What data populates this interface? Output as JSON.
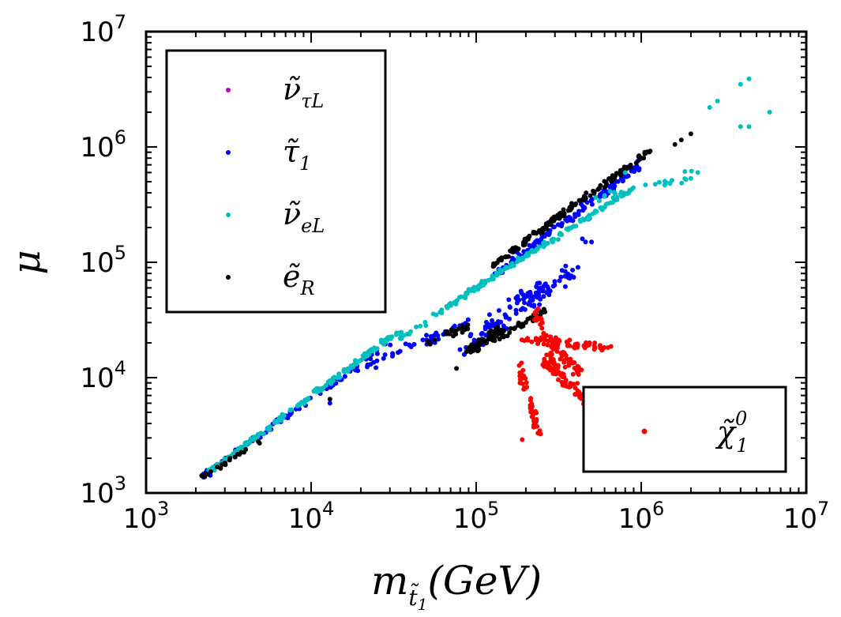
{
  "chart_data": {
    "type": "scatter",
    "title": "",
    "xlabel": {
      "base": "m",
      "sub": "t̃",
      "subsub": "1",
      "unit": "(GeV)"
    },
    "ylabel": "μ",
    "xscale": "log",
    "yscale": "log",
    "xlim": [
      1000,
      10000000
    ],
    "ylim": [
      1000,
      10000000
    ],
    "xticks": [
      {
        "base": "10",
        "exp": "3"
      },
      {
        "base": "10",
        "exp": "4"
      },
      {
        "base": "10",
        "exp": "5"
      },
      {
        "base": "10",
        "exp": "6"
      },
      {
        "base": "10",
        "exp": "7"
      }
    ],
    "yticks": [
      {
        "base": "10",
        "exp": "3"
      },
      {
        "base": "10",
        "exp": "4"
      },
      {
        "base": "10",
        "exp": "5"
      },
      {
        "base": "10",
        "exp": "6"
      },
      {
        "base": "10",
        "exp": "7"
      }
    ],
    "legend_main": {
      "placement": "upper-left",
      "entries": [
        {
          "name": "nu-tau-L",
          "symbol": "ν̃",
          "sub": "τL",
          "color": "#bf00bf"
        },
        {
          "name": "stau-1",
          "symbol": "τ̃",
          "sub": "1",
          "color": "#0000ff"
        },
        {
          "name": "nu-e-L",
          "symbol": "ν̃",
          "sub": "eL",
          "color": "#00bfbf"
        },
        {
          "name": "selectron-R",
          "symbol": "ẽ",
          "sub": "R",
          "color": "#000000"
        }
      ]
    },
    "legend_secondary": {
      "placement": "lower-right",
      "entries": [
        {
          "name": "neutralino-1",
          "symbol": "χ̃",
          "sup": "0",
          "sub": "1",
          "color": "#ff0000"
        }
      ]
    },
    "series": [
      {
        "name": "stau-1",
        "color": "#0000ff",
        "segments": [
          {
            "x": [
              2200,
              30000
            ],
            "y": [
              1400,
              20000
            ],
            "n": 90,
            "sx": 0.03,
            "sy": 0.03
          },
          {
            "x": [
              20000,
              90000
            ],
            "y": [
              12000,
              30000
            ],
            "n": 50,
            "sx": 0.06,
            "sy": 0.05
          },
          {
            "x": [
              90000,
              260000
            ],
            "y": [
              18000,
              65000
            ],
            "n": 90,
            "sx": 0.08,
            "sy": 0.12
          },
          {
            "x": [
              130000,
              1000000
            ],
            "y": [
              80000,
              700000
            ],
            "n": 130,
            "sx": 0.04,
            "sy": 0.04
          },
          {
            "x": [
              200000,
              380000
            ],
            "y": [
              40000,
              85000
            ],
            "n": 35,
            "sx": 0.08,
            "sy": 0.08
          }
        ]
      },
      {
        "name": "nu-e-L",
        "color": "#00bfbf",
        "segments": [
          {
            "x": [
              2200,
              35000
            ],
            "y": [
              1400,
              26000
            ],
            "n": 170,
            "sx": 0.025,
            "sy": 0.025
          },
          {
            "x": [
              35000,
              100000
            ],
            "y": [
              22000,
              60000
            ],
            "n": 40,
            "sx": 0.03,
            "sy": 0.03
          },
          {
            "x": [
              90000,
              900000
            ],
            "y": [
              55000,
              440000
            ],
            "n": 130,
            "sx": 0.025,
            "sy": 0.025
          },
          {
            "x": [
              500000,
              2200000
            ],
            "y": [
              350000,
              600000
            ],
            "n": 25,
            "sx": 0.05,
            "sy": 0.08
          }
        ]
      },
      {
        "name": "selectron-R",
        "color": "#000000",
        "segments": [
          {
            "x": [
              2200,
              5000
            ],
            "y": [
              1400,
              2800
            ],
            "n": 25,
            "sx": 0.02,
            "sy": 0.02
          },
          {
            "x": [
              50000,
              90000
            ],
            "y": [
              20000,
              28000
            ],
            "n": 25,
            "sx": 0.04,
            "sy": 0.04
          },
          {
            "x": [
              90000,
              140000
            ],
            "y": [
              17000,
              26000
            ],
            "n": 70,
            "sx": 0.05,
            "sy": 0.05
          },
          {
            "x": [
              140000,
              260000
            ],
            "y": [
              22000,
              38000
            ],
            "n": 30,
            "sx": 0.04,
            "sy": 0.04
          },
          {
            "x": [
              120000,
              1150000
            ],
            "y": [
              90000,
              950000
            ],
            "n": 160,
            "sx": 0.03,
            "sy": 0.03
          }
        ],
        "points": [
          [
            13000,
            6500
          ],
          [
            1600000,
            1050000
          ],
          [
            1750000,
            1150000
          ],
          [
            2000000,
            1300000
          ],
          [
            76000,
            12000
          ]
        ]
      },
      {
        "name": "neutralino-1",
        "color": "#ff0000",
        "segments": [
          {
            "x": [
              200000,
              580000
            ],
            "y": [
              22000,
              18000
            ],
            "n": 60,
            "sx": 0.12,
            "sy": 0.05
          },
          {
            "x": [
              250000,
              420000
            ],
            "y": [
              25000,
              11000
            ],
            "n": 50,
            "sx": 0.05,
            "sy": 0.08
          },
          {
            "x": [
              260000,
              480000
            ],
            "y": [
              14000,
              6000
            ],
            "n": 70,
            "sx": 0.05,
            "sy": 0.07
          },
          {
            "x": [
              180000,
              240000
            ],
            "y": [
              12000,
              3400
            ],
            "n": 50,
            "sx": 0.03,
            "sy": 0.12
          },
          {
            "x": [
              230000,
              300000
            ],
            "y": [
              38000,
              12000
            ],
            "n": 30,
            "sx": 0.03,
            "sy": 0.06
          }
        ],
        "points": [
          [
            190000,
            2900
          ]
        ]
      }
    ],
    "extra_points": [
      {
        "series": "nu-e-L",
        "color": "#00bfbf",
        "points": [
          [
            2600000,
            2200000
          ],
          [
            2900000,
            2500000
          ],
          [
            4000000,
            3500000
          ],
          [
            4500000,
            3900000
          ],
          [
            6000000,
            2000000
          ],
          [
            4000000,
            1500000
          ],
          [
            4500000,
            1500000
          ],
          [
            2200000,
            600000
          ],
          [
            800000,
            600000
          ]
        ]
      },
      {
        "series": "stau-1",
        "color": "#0000ff",
        "points": [
          [
            460000,
            150000
          ],
          [
            500000,
            150000
          ],
          [
            440000,
            160000
          ],
          [
            13000,
            6000
          ]
        ]
      }
    ]
  }
}
